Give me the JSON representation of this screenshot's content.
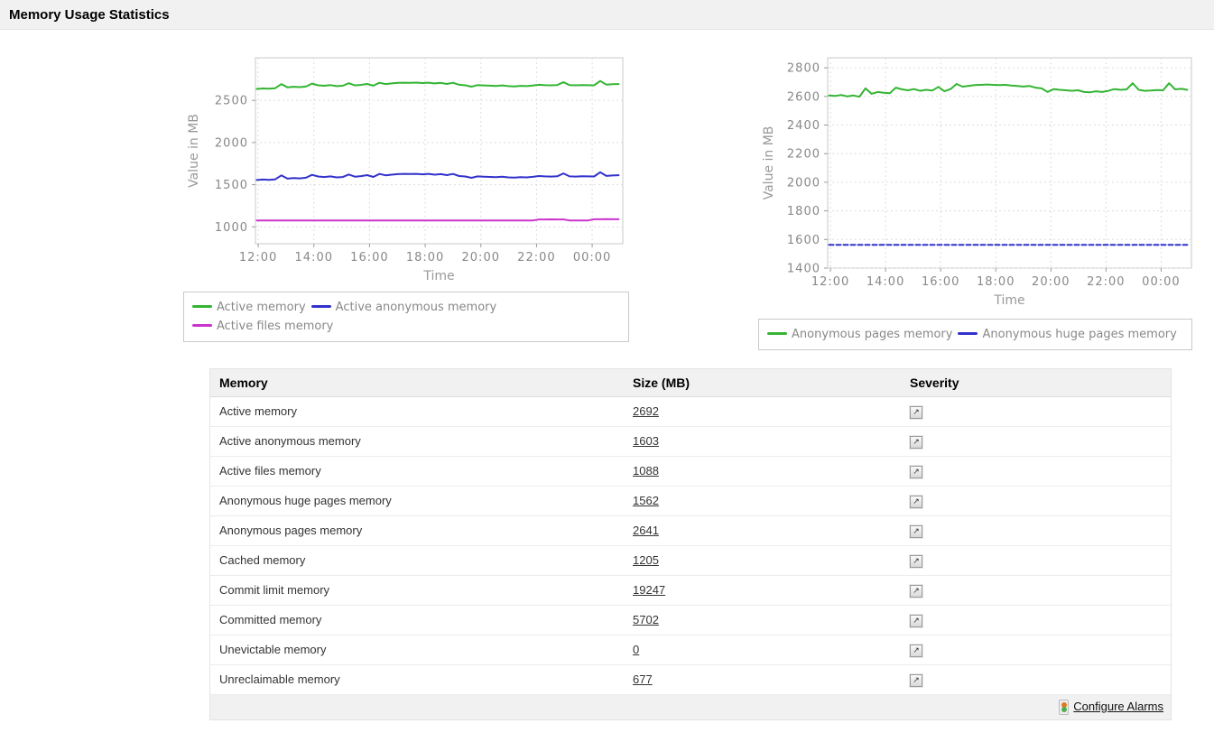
{
  "header": {
    "title": "Memory Usage Statistics"
  },
  "colors": {
    "green_series": "#33b533",
    "blue_series": "#3232cc",
    "magenta_series": "#cc33cc",
    "tick_text": "#888888",
    "grid_line": "#dddddd",
    "plot_border": "#c9c9c9",
    "header_bg": "#f1f1f1",
    "alarm_orange": "#e07820",
    "alarm_green": "#4caf50"
  },
  "chart_data": [
    {
      "type": "line",
      "title": "",
      "xlabel": "Time",
      "ylabel": "Value in MB",
      "x_ticks": [
        "12:00",
        "14:00",
        "16:00",
        "18:00",
        "20:00",
        "22:00",
        "00:00"
      ],
      "x_tick_hours": [
        12,
        14,
        16,
        18,
        20,
        22,
        24
      ],
      "x_axis_range": [
        11.9,
        25.1
      ],
      "x_data_range": [
        11.95,
        24.95
      ],
      "y_ticks": [
        1000,
        1500,
        2000,
        2500
      ],
      "ylim": [
        800,
        3005
      ],
      "grid": true,
      "legend_position": "bottom",
      "legend_rows": [
        [
          0,
          1
        ],
        [
          2
        ]
      ],
      "series": [
        {
          "name": "Active memory",
          "color": "#33b533",
          "values": [
            2636,
            2641,
            2638,
            2644,
            2692,
            2655,
            2661,
            2657,
            2664,
            2699,
            2679,
            2673,
            2681,
            2669,
            2673,
            2703,
            2677,
            2684,
            2695,
            2674,
            2709,
            2693,
            2701,
            2707,
            2710,
            2708,
            2711,
            2705,
            2710,
            2701,
            2707,
            2695,
            2709,
            2685,
            2679,
            2663,
            2681,
            2677,
            2674,
            2671,
            2677,
            2669,
            2665,
            2672,
            2669,
            2675,
            2685,
            2680,
            2678,
            2682,
            2716,
            2681,
            2678,
            2682,
            2680,
            2679,
            2730,
            2686,
            2691,
            2694
          ]
        },
        {
          "name": "Active anonymous memory",
          "color": "#3232cc",
          "values": [
            1556,
            1561,
            1558,
            1563,
            1610,
            1572,
            1579,
            1575,
            1582,
            1617,
            1597,
            1591,
            1599,
            1587,
            1591,
            1621,
            1595,
            1602,
            1613,
            1592,
            1627,
            1611,
            1619,
            1625,
            1628,
            1626,
            1629,
            1623,
            1628,
            1619,
            1625,
            1613,
            1627,
            1603,
            1597,
            1581,
            1599,
            1595,
            1592,
            1589,
            1595,
            1587,
            1583,
            1590,
            1587,
            1593,
            1603,
            1598,
            1596,
            1600,
            1634,
            1598,
            1596,
            1600,
            1598,
            1597,
            1648,
            1604,
            1609,
            1612
          ]
        },
        {
          "name": "Active files memory",
          "color": "#cc33cc",
          "values": [
            1076,
            1075,
            1076,
            1076,
            1075,
            1076,
            1076,
            1075,
            1076,
            1076,
            1075,
            1076,
            1076,
            1075,
            1076,
            1076,
            1075,
            1076,
            1076,
            1075,
            1076,
            1076,
            1075,
            1076,
            1076,
            1075,
            1076,
            1076,
            1075,
            1076,
            1076,
            1075,
            1076,
            1076,
            1075,
            1076,
            1076,
            1075,
            1076,
            1076,
            1075,
            1076,
            1076,
            1075,
            1076,
            1076,
            1088,
            1088,
            1089,
            1088,
            1088,
            1076,
            1075,
            1076,
            1076,
            1090,
            1090,
            1091,
            1090,
            1090
          ]
        }
      ]
    },
    {
      "type": "line",
      "title": "",
      "xlabel": "Time",
      "ylabel": "Value in MB",
      "x_ticks": [
        "12:00",
        "14:00",
        "16:00",
        "18:00",
        "20:00",
        "22:00",
        "00:00"
      ],
      "x_tick_hours": [
        12,
        14,
        16,
        18,
        20,
        22,
        24
      ],
      "x_axis_range": [
        11.9,
        25.1
      ],
      "x_data_range": [
        11.95,
        24.95
      ],
      "y_ticks": [
        1400,
        1600,
        1800,
        2000,
        2200,
        2400,
        2600,
        2800
      ],
      "ylim": [
        1400,
        2870
      ],
      "grid": true,
      "legend_position": "bottom",
      "legend_rows": [
        [
          0,
          1
        ]
      ],
      "series": [
        {
          "name": "Anonymous pages memory",
          "color": "#33b533",
          "values": [
            2607,
            2603,
            2610,
            2600,
            2606,
            2598,
            2656,
            2618,
            2631,
            2626,
            2622,
            2661,
            2649,
            2643,
            2651,
            2639,
            2646,
            2641,
            2666,
            2636,
            2651,
            2687,
            2668,
            2674,
            2679,
            2681,
            2683,
            2681,
            2679,
            2681,
            2676,
            2673,
            2669,
            2673,
            2661,
            2656,
            2631,
            2651,
            2646,
            2643,
            2639,
            2643,
            2631,
            2629,
            2636,
            2631,
            2639,
            2651,
            2646,
            2649,
            2692,
            2646,
            2639,
            2641,
            2644,
            2642,
            2692,
            2649,
            2653,
            2646
          ]
        },
        {
          "name": "Anonymous huge pages memory",
          "color": "#3232cc",
          "dash": "5,3",
          "values": [
            1562,
            1562,
            1562,
            1562,
            1562,
            1562,
            1562,
            1562,
            1562,
            1562,
            1562,
            1562,
            1562,
            1562,
            1562,
            1562,
            1562,
            1562,
            1562,
            1562,
            1562,
            1562,
            1562,
            1562,
            1562,
            1562,
            1562,
            1562,
            1562,
            1562,
            1562,
            1562,
            1562,
            1562,
            1562,
            1562,
            1562,
            1562,
            1562,
            1562,
            1562,
            1562,
            1562,
            1562,
            1562,
            1562,
            1562,
            1562,
            1562,
            1562,
            1562,
            1562,
            1562,
            1562,
            1562,
            1562,
            1562,
            1562,
            1562,
            1562
          ]
        }
      ]
    }
  ],
  "table": {
    "columns": [
      "Memory",
      "Size (MB)",
      "Severity"
    ],
    "severity_icon": "trend-arrow-icon",
    "rows": [
      {
        "memory": "Active memory",
        "size": "2692"
      },
      {
        "memory": "Active anonymous memory",
        "size": "1603"
      },
      {
        "memory": "Active files memory",
        "size": "1088"
      },
      {
        "memory": "Anonymous huge pages memory",
        "size": "1562"
      },
      {
        "memory": "Anonymous pages memory",
        "size": "2641"
      },
      {
        "memory": "Cached memory",
        "size": "1205"
      },
      {
        "memory": "Commit limit memory",
        "size": "19247"
      },
      {
        "memory": "Committed memory",
        "size": "5702"
      },
      {
        "memory": "Unevictable memory",
        "size": "0"
      },
      {
        "memory": "Unreclaimable memory",
        "size": "677"
      }
    ],
    "footer": {
      "configure_alarms_label": "Configure Alarms"
    }
  }
}
